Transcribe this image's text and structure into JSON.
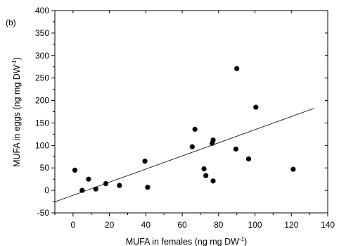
{
  "chart_data": {
    "type": "scatter",
    "panel_label": "(b)",
    "xlabel": "MUFA in females (ng mg DW",
    "xlabel_sup": "-1",
    "xlabel_end": ")",
    "ylabel": "MUFA in eggs (ng mg DW",
    "ylabel_sup": "-1",
    "ylabel_end": ")",
    "xlim": [
      -10,
      140
    ],
    "ylim": [
      -50,
      400
    ],
    "x_ticks": [
      0,
      20,
      40,
      60,
      80,
      100,
      120,
      140
    ],
    "y_ticks": [
      -50,
      0,
      50,
      100,
      150,
      200,
      250,
      300,
      350,
      400
    ],
    "x_tick_labels": [
      "0",
      "20",
      "40",
      "60",
      "80",
      "100",
      "120",
      "140"
    ],
    "y_tick_labels": [
      "-50",
      "0",
      "50",
      "100",
      "150",
      "200",
      "250",
      "300",
      "350",
      "400"
    ],
    "grid": false,
    "series": [
      {
        "points": [
          {
            "x": 1,
            "y": 45
          },
          {
            "x": 5,
            "y": 0
          },
          {
            "x": 8.5,
            "y": 25
          },
          {
            "x": 12.5,
            "y": 3
          },
          {
            "x": 18,
            "y": 15
          },
          {
            "x": 25.5,
            "y": 11
          },
          {
            "x": 39.5,
            "y": 65
          },
          {
            "x": 41,
            "y": 7
          },
          {
            "x": 65.5,
            "y": 97
          },
          {
            "x": 67,
            "y": 136
          },
          {
            "x": 72,
            "y": 48
          },
          {
            "x": 73,
            "y": 33
          },
          {
            "x": 76.5,
            "y": 105
          },
          {
            "x": 77,
            "y": 112
          },
          {
            "x": 77,
            "y": 21
          },
          {
            "x": 89.5,
            "y": 92
          },
          {
            "x": 90,
            "y": 271
          },
          {
            "x": 96.5,
            "y": 70
          },
          {
            "x": 100.5,
            "y": 185
          },
          {
            "x": 121,
            "y": 47
          }
        ]
      }
    ],
    "trend_line": {
      "x": [
        -10,
        132.5
      ],
      "y": [
        -25.5,
        182.5
      ]
    }
  }
}
